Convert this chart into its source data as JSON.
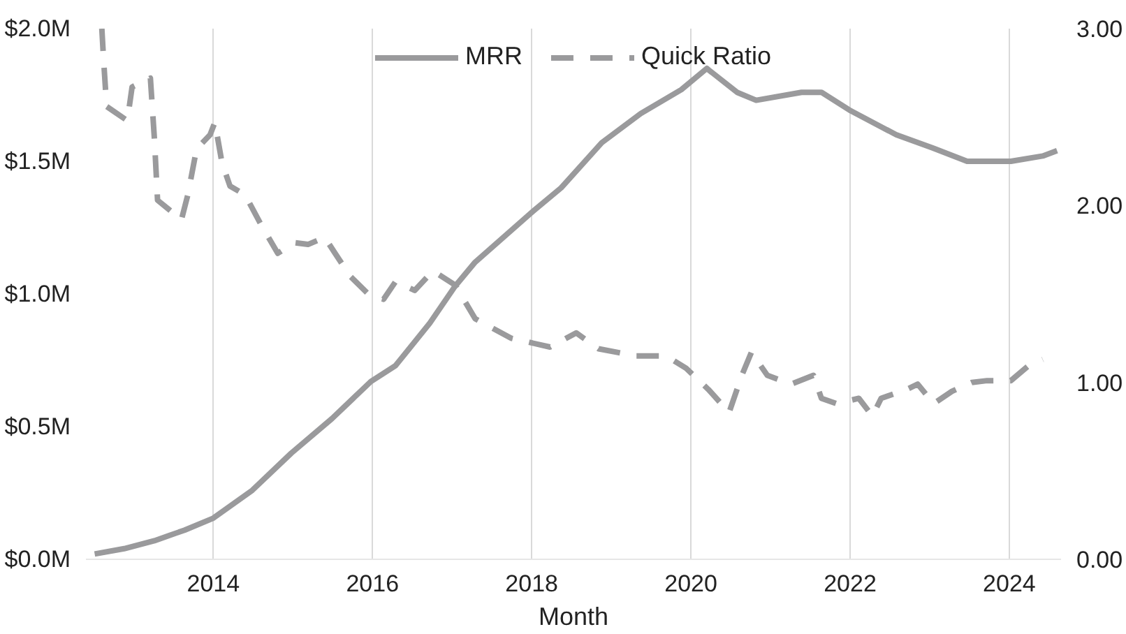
{
  "chart_data": {
    "type": "line",
    "xlabel": "Month",
    "xlim": [
      2012.4,
      2024.65
    ],
    "xticks": [
      2014,
      2016,
      2018,
      2020,
      2022,
      2024
    ],
    "ylim": [
      0,
      2.0
    ],
    "yticks": [
      {
        "value": 0,
        "label": "$0.0M"
      },
      {
        "value": 0.5,
        "label": "$0.5M"
      },
      {
        "value": 1.0,
        "label": "$1.0M"
      },
      {
        "value": 1.5,
        "label": "$1.5M"
      },
      {
        "value": 2.0,
        "label": "$2.0M"
      }
    ],
    "y2lim": [
      0,
      3.0
    ],
    "y2ticks": [
      {
        "value": 0,
        "label": "0.00"
      },
      {
        "value": 1,
        "label": "1.00"
      },
      {
        "value": 2,
        "label": "2.00"
      },
      {
        "value": 3,
        "label": "3.00"
      }
    ],
    "grid": "x",
    "legend": "top",
    "marker": "none",
    "series": [
      {
        "name": "MRR",
        "color": "#9a9a9c",
        "line_style": "solid",
        "x": [
          2012.51,
          2012.88,
          2013.26,
          2013.64,
          2014.0,
          2014.49,
          2014.98,
          2015.49,
          2015.98,
          2016.29,
          2016.72,
          2017.04,
          2017.29,
          2018.01,
          2018.37,
          2018.88,
          2019.37,
          2019.88,
          2020.2,
          2020.58,
          2020.82,
          2021.39,
          2021.64,
          2022.01,
          2022.58,
          2023.04,
          2023.47,
          2024.02,
          2024.42,
          2024.6
        ],
        "values": [
          0.02,
          0.04,
          0.07,
          0.11,
          0.155,
          0.26,
          0.4,
          0.53,
          0.67,
          0.73,
          0.89,
          1.03,
          1.12,
          1.31,
          1.4,
          1.57,
          1.68,
          1.77,
          1.85,
          1.76,
          1.73,
          1.76,
          1.76,
          1.69,
          1.6,
          1.55,
          1.5,
          1.5,
          1.52,
          1.54
        ]
      },
      {
        "name": "Quick Ratio",
        "color": "#9a9a9c",
        "line_style": "dashed",
        "axis": "y2",
        "x": [
          2012.6,
          2012.62,
          2012.66,
          2012.92,
          2012.98,
          2013.21,
          2013.26,
          2013.3,
          2013.6,
          2013.68,
          2013.79,
          2013.96,
          2014.02,
          2014.11,
          2014.21,
          2014.4,
          2014.59,
          2014.81,
          2015.02,
          2015.19,
          2015.4,
          2015.53,
          2015.72,
          2015.97,
          2016.14,
          2016.29,
          2016.53,
          2016.76,
          2017.04,
          2017.29,
          2017.74,
          2018.23,
          2018.56,
          2018.84,
          2019.31,
          2019.69,
          2019.94,
          2020.22,
          2020.48,
          2020.64,
          2020.76,
          2020.96,
          2021.26,
          2021.54,
          2021.64,
          2021.83,
          2022.11,
          2022.28,
          2022.39,
          2022.71,
          2022.85,
          2023.05,
          2023.28,
          2023.53,
          2023.72,
          2024.02,
          2024.23,
          2024.42
        ],
        "values": [
          3.0,
          2.84,
          2.56,
          2.48,
          2.67,
          2.72,
          2.38,
          2.03,
          1.92,
          2.06,
          2.32,
          2.4,
          2.47,
          2.24,
          2.11,
          2.06,
          1.9,
          1.73,
          1.79,
          1.78,
          1.82,
          1.73,
          1.6,
          1.49,
          1.47,
          1.57,
          1.52,
          1.63,
          1.55,
          1.36,
          1.25,
          1.2,
          1.28,
          1.19,
          1.15,
          1.15,
          1.08,
          0.96,
          0.83,
          1.04,
          1.17,
          1.04,
          0.99,
          1.04,
          0.91,
          0.88,
          0.91,
          0.81,
          0.91,
          0.96,
          0.99,
          0.88,
          0.95,
          1.0,
          1.01,
          1.01,
          1.09,
          1.13
        ]
      }
    ]
  }
}
